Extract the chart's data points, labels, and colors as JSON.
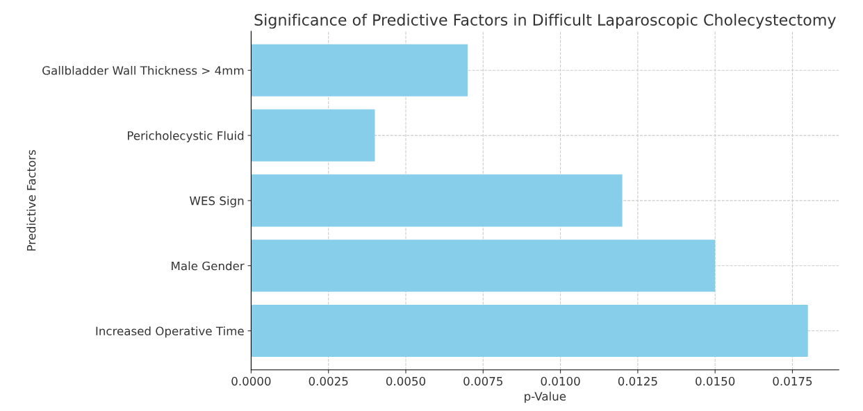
{
  "chart_data": {
    "type": "bar",
    "orientation": "horizontal",
    "title": "Significance of Predictive Factors in Difficult Laparoscopic Cholecystectomy",
    "xlabel": "p-Value",
    "ylabel": "Predictive Factors",
    "categories": [
      "Gallbladder Wall Thickness > 4mm",
      "Pericholecystic Fluid",
      "WES Sign",
      "Male Gender",
      "Increased Operative Time"
    ],
    "values": [
      0.007,
      0.004,
      0.012,
      0.015,
      0.018
    ],
    "color": "#87ceeb",
    "xlim": [
      0,
      0.019
    ],
    "xticks": [
      {
        "value": 0,
        "label": "0.0000"
      },
      {
        "value": 0.0025,
        "label": "0.0025"
      },
      {
        "value": 0.005,
        "label": "0.0050"
      },
      {
        "value": 0.0075,
        "label": "0.0075"
      },
      {
        "value": 0.01,
        "label": "0.0100"
      },
      {
        "value": 0.0125,
        "label": "0.0125"
      },
      {
        "value": 0.015,
        "label": "0.0150"
      },
      {
        "value": 0.0175,
        "label": "0.0175"
      }
    ],
    "grid": true,
    "line_style": "dashed"
  }
}
